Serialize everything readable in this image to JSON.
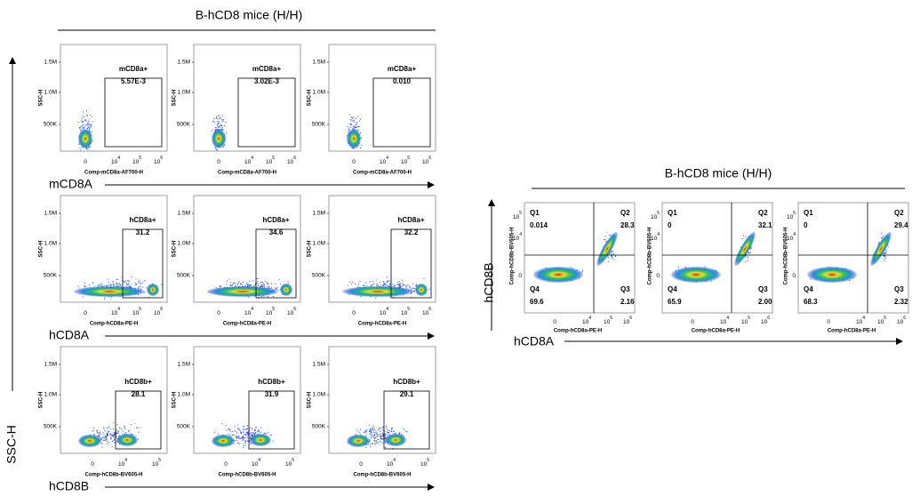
{
  "left": {
    "title": "B-hCD8 mice (H/H)",
    "y_axis_label": "SSC-H",
    "panel_y_title": "SSC-H",
    "yticks": [
      "1.5M",
      "1.0M",
      "500K"
    ],
    "rows": [
      {
        "label": "mCD8A",
        "x_axis_title": "Comp-mCD8a-AF700-H",
        "gate": "mCD8a+",
        "xticks": [
          {
            "base": "0",
            "exp": ""
          },
          {
            "base": "10",
            "exp": "4"
          },
          {
            "base": "10",
            "exp": "5"
          },
          {
            "base": "10",
            "exp": "6"
          }
        ],
        "values": [
          "5.57E-3",
          "3.02E-3",
          "0.010"
        ]
      },
      {
        "label": "hCD8A",
        "x_axis_title": "Comp-hCD8a-PE-H",
        "gate": "hCD8a+",
        "xticks": [
          {
            "base": "0",
            "exp": ""
          },
          {
            "base": "10",
            "exp": "4"
          },
          {
            "base": "10",
            "exp": "5"
          },
          {
            "base": "10",
            "exp": "6"
          }
        ],
        "values": [
          "31.2",
          "34.6",
          "32.2"
        ]
      },
      {
        "label": "hCD8B",
        "x_axis_title": "Comp-hCD8b-BV605-H",
        "gate": "hCD8b+",
        "xticks": [
          {
            "base": "0",
            "exp": ""
          },
          {
            "base": "10",
            "exp": "4"
          },
          {
            "base": "10",
            "exp": "5"
          }
        ],
        "values": [
          "28.1",
          "31.9",
          "29.1"
        ]
      }
    ]
  },
  "right": {
    "title": "B-hCD8 mice (H/H)",
    "y_axis_label": "hCD8B",
    "x_axis_label": "hCD8A",
    "panel_y_title": "Comp-hCD8b-BV605-H",
    "panel_x_title": "Comp-hCD8a-PE-H",
    "xticks": [
      {
        "base": "0",
        "exp": ""
      },
      {
        "base": "10",
        "exp": "4"
      },
      {
        "base": "10",
        "exp": "5"
      },
      {
        "base": "10",
        "exp": "6"
      }
    ],
    "yticks": [
      {
        "base": "10",
        "exp": "5"
      },
      {
        "base": "10",
        "exp": "4"
      },
      {
        "base": "0",
        "exp": ""
      }
    ],
    "quadrant_names": [
      "Q1",
      "Q2",
      "Q3",
      "Q4"
    ],
    "panels": [
      {
        "Q1": "0.014",
        "Q2": "28.3",
        "Q3": "2.16",
        "Q4": "69.6"
      },
      {
        "Q1": "0",
        "Q2": "32.1",
        "Q3": "2.00",
        "Q4": "65.9"
      },
      {
        "Q1": "0",
        "Q2": "29.4",
        "Q3": "2.32",
        "Q4": "68.3"
      }
    ]
  }
}
